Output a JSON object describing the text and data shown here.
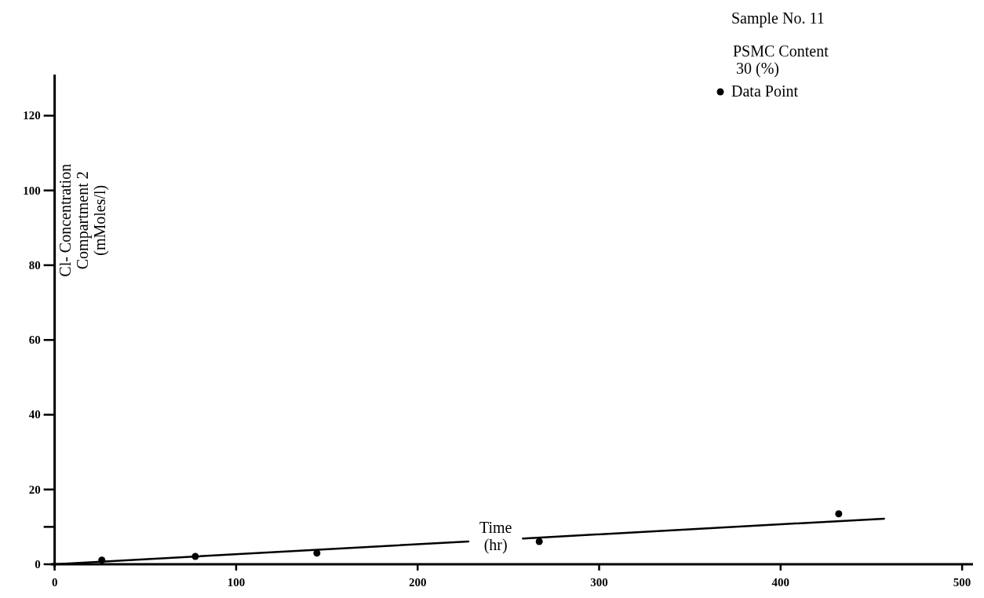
{
  "chart_data": {
    "type": "scatter",
    "xlabel": "Time (hr)",
    "ylabel": "Cl- Concentration\nCompartment 2\n(mMoles/l)",
    "annotations": [
      "Sample No. 11",
      "PSMC Content\n30 (%)"
    ],
    "xlim": [
      -2,
      506
    ],
    "ylim": [
      0,
      131
    ],
    "xticks": [
      0,
      100,
      200,
      300,
      400,
      500
    ],
    "yticks": [
      0,
      {
        "value": 10,
        "label": null
      },
      20,
      40,
      60,
      80,
      100,
      120
    ],
    "grid": false,
    "legend": "top right",
    "marker": "circle",
    "series": [
      {
        "name": "Data Point",
        "color": "#000000",
        "x": [
          26,
          77.5,
          144.5,
          267,
          432
        ],
        "values": [
          1.1,
          2.1,
          3.0,
          6.1,
          13.5
        ]
      },
      {
        "type": "line",
        "color": "#000000",
        "marker": "none",
        "line_style": "solid",
        "x": [
          0,
          228,
          243,
          258,
          457
        ],
        "values": [
          0,
          6.1,
          null,
          6.9,
          12.2
        ]
      }
    ]
  }
}
